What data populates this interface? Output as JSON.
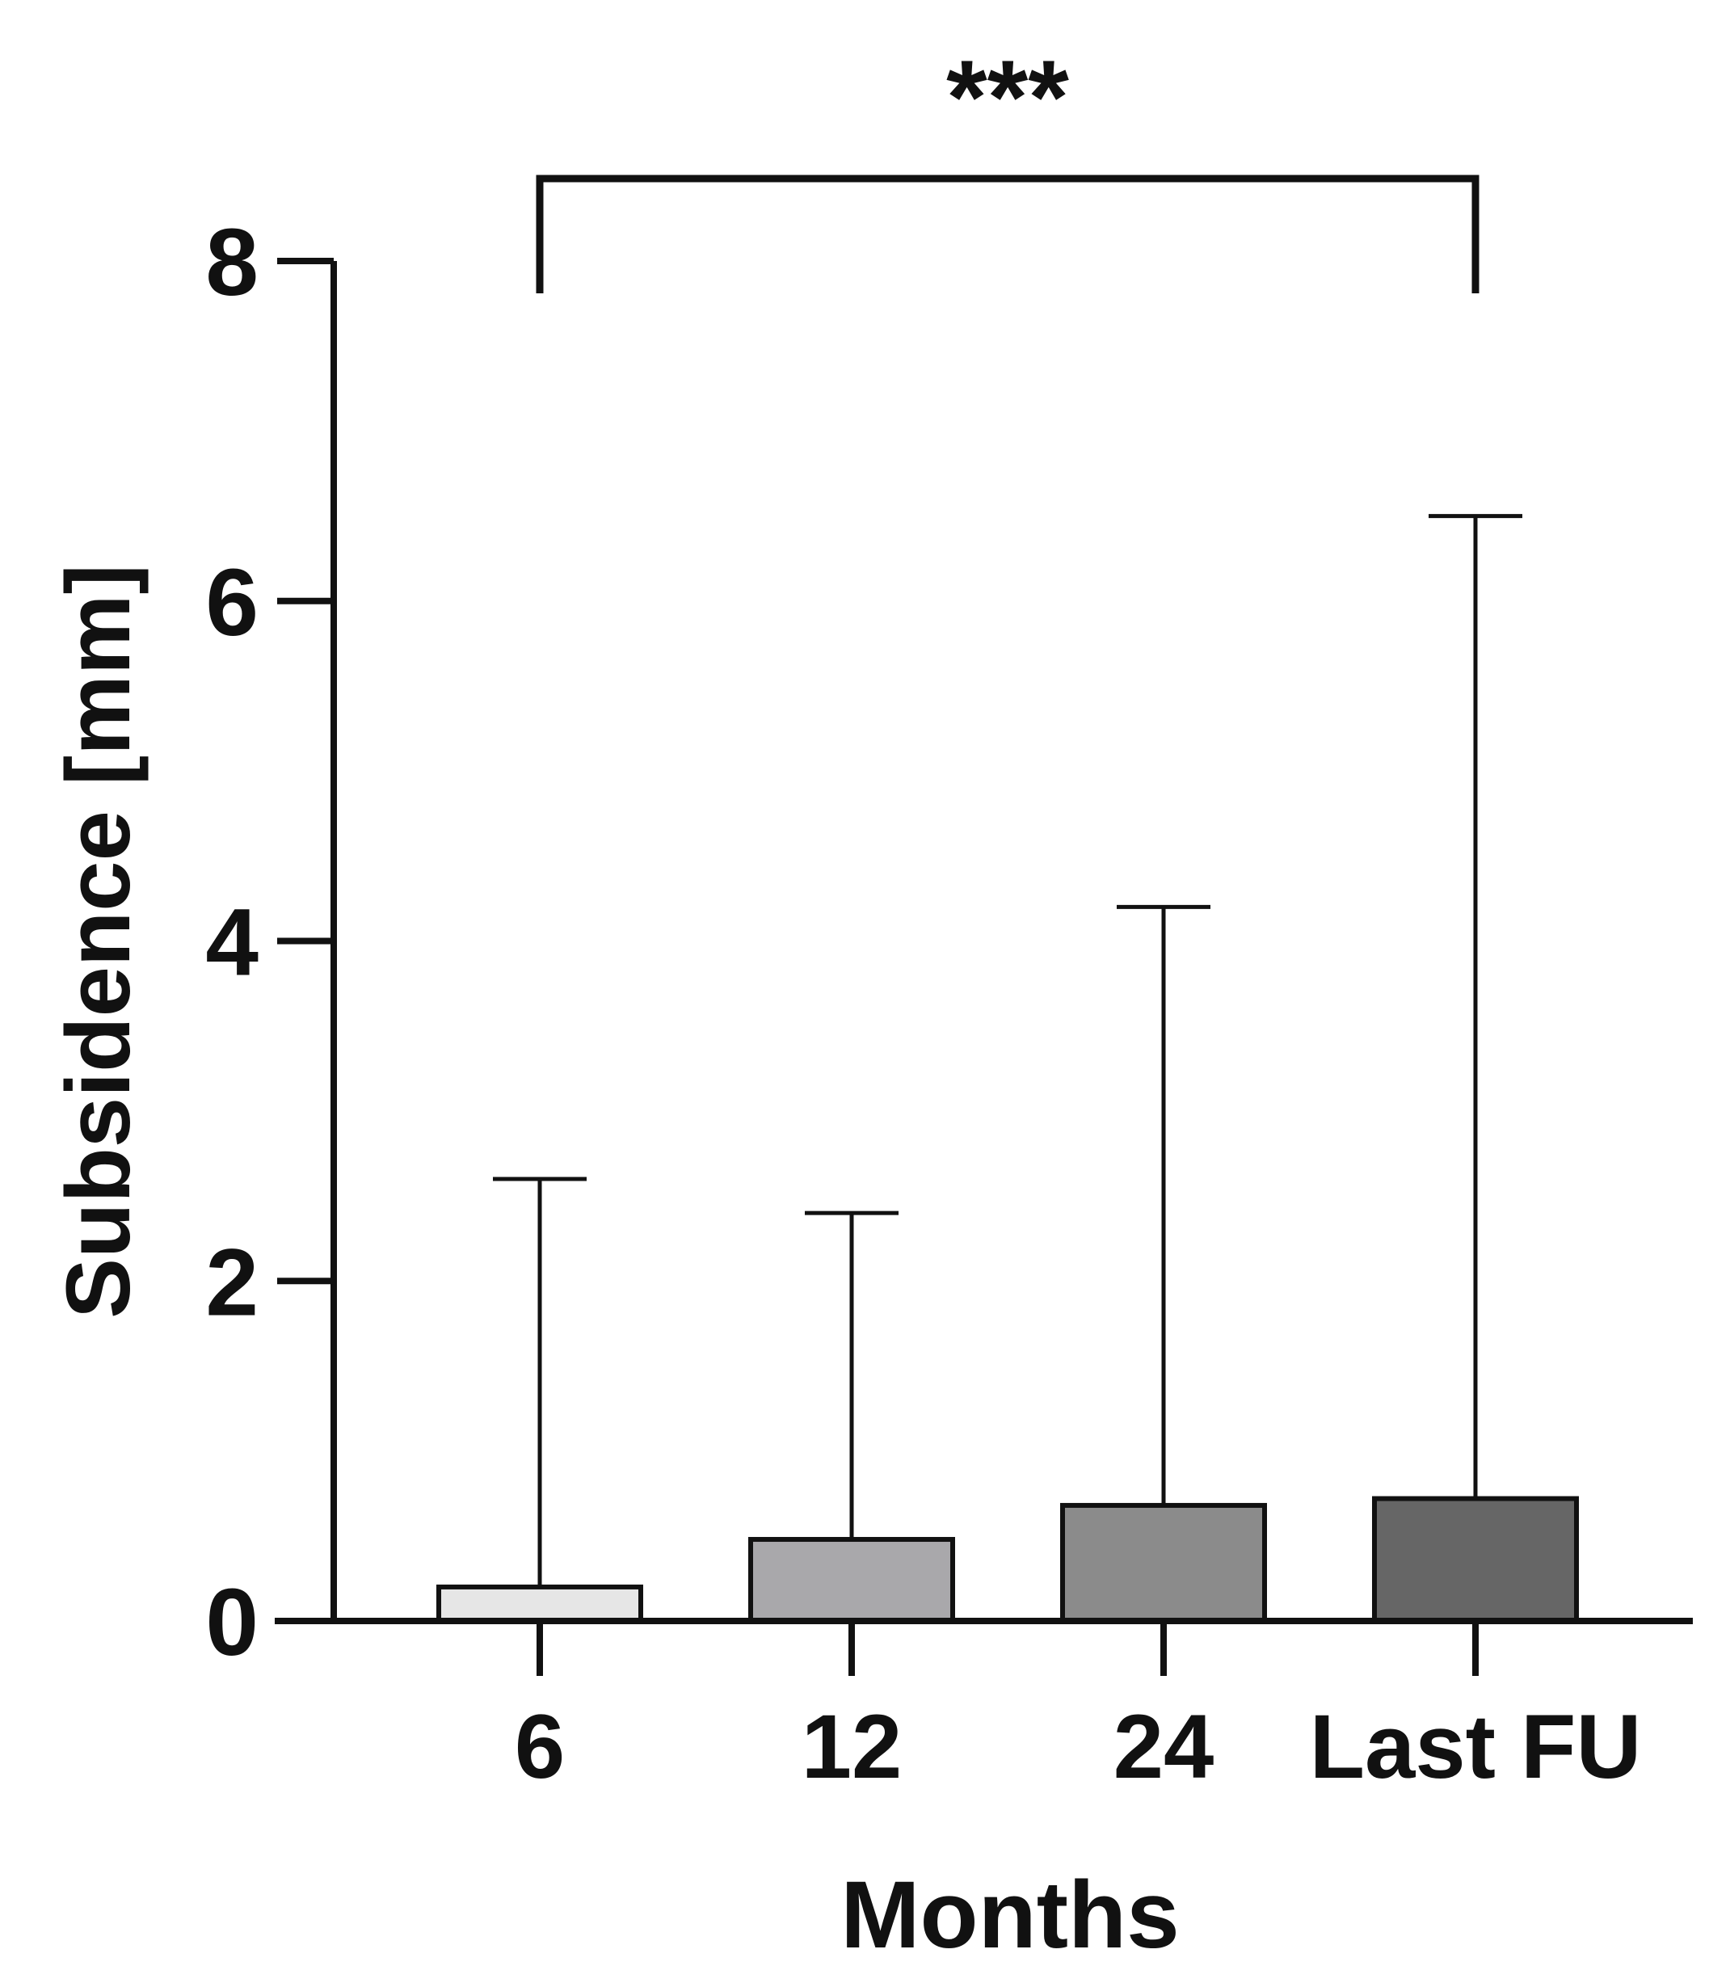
{
  "chart_data": {
    "type": "bar",
    "categories": [
      "6",
      "12",
      "24",
      "Last FU"
    ],
    "values": [
      0.2,
      0.48,
      0.68,
      0.72
    ],
    "error_upper": [
      2.6,
      2.4,
      4.2,
      6.5
    ],
    "bar_colors": [
      "#e6e6e6",
      "#a9a8ab",
      "#8b8b8b",
      "#666666"
    ],
    "xlabel": "Months",
    "ylabel": "Subsidence [mm]",
    "ylim": [
      0,
      8
    ],
    "yticks": [
      0,
      2,
      4,
      6,
      8
    ],
    "grid": false,
    "significance": {
      "label": "***",
      "from_category": "6",
      "to_category": "Last FU"
    }
  }
}
